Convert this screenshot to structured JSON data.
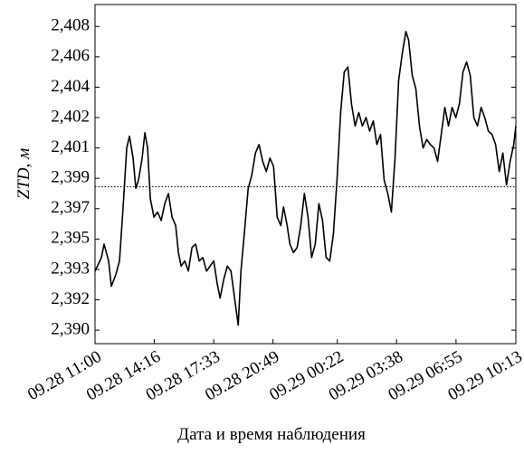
{
  "chart_data": {
    "type": "line",
    "x_label": "Дата и время наблюдения",
    "y_label": "ZTD, м",
    "xlim": [
      "09.28 11:00",
      "09.29 10:13"
    ],
    "xticks": [
      "09.28 11:00",
      "09.28 14:16",
      "09.28 17:33",
      "09.28 20:49",
      "09.29 00:22",
      "09.29 03:38",
      "09.29 06:55",
      "09.29 10:13"
    ],
    "ylim": [
      2.389,
      2.4091
    ],
    "yticks": [
      {
        "value": 2.3898,
        "label": "2,390"
      },
      {
        "value": 2.3916,
        "label": "2,392"
      },
      {
        "value": 2.3934,
        "label": "2,393"
      },
      {
        "value": 2.3952,
        "label": "2,395"
      },
      {
        "value": 2.397,
        "label": "2,397"
      },
      {
        "value": 2.3988,
        "label": "2,399"
      },
      {
        "value": 2.4006,
        "label": "2,401"
      },
      {
        "value": 2.4024,
        "label": "2,402"
      },
      {
        "value": 2.4042,
        "label": "2,404"
      },
      {
        "value": 2.406,
        "label": "2,406"
      },
      {
        "value": 2.4078,
        "label": "2,408"
      }
    ],
    "reference_line": 2.3983,
    "color": "#000000",
    "x": [
      "09.28 11:00",
      "09.28 11:21",
      "09.28 11:30",
      "09.28 11:45",
      "09.28 11:54",
      "09.28 12:09",
      "09.28 12:21",
      "09.28 12:33",
      "09.28 12:45",
      "09.28 12:54",
      "09.28 13:06",
      "09.28 13:15",
      "09.28 13:24",
      "09.28 13:36",
      "09.28 13:45",
      "09.28 13:54",
      "09.28 14:03",
      "09.28 14:15",
      "09.28 14:27",
      "09.28 14:39",
      "09.28 14:51",
      "09.28 15:03",
      "09.28 15:15",
      "09.28 15:27",
      "09.28 15:36",
      "09.28 15:45",
      "09.28 15:57",
      "09.28 16:09",
      "09.28 16:21",
      "09.28 16:33",
      "09.28 16:45",
      "09.28 16:57",
      "09.28 17:09",
      "09.28 17:21",
      "09.28 17:33",
      "09.28 17:45",
      "09.28 17:54",
      "09.28 18:06",
      "09.28 18:18",
      "09.28 18:30",
      "09.28 18:42",
      "09.28 18:54",
      "09.28 19:03",
      "09.28 19:15",
      "09.28 19:27",
      "09.28 19:39",
      "09.28 19:51",
      "09.28 20:03",
      "09.28 20:15",
      "09.28 20:27",
      "09.28 20:39",
      "09.28 20:51",
      "09.28 21:03",
      "09.28 21:15",
      "09.28 21:24",
      "09.28 21:36",
      "09.28 21:45",
      "09.28 21:57",
      "09.28 22:09",
      "09.28 22:21",
      "09.28 22:33",
      "09.28 22:45",
      "09.28 22:57",
      "09.28 23:09",
      "09.28 23:21",
      "09.28 23:33",
      "09.28 23:45",
      "09.28 23:57",
      "09.29 00:09",
      "09.29 00:21",
      "09.29 00:33",
      "09.29 00:45",
      "09.29 00:57",
      "09.29 01:09",
      "09.29 01:21",
      "09.29 01:33",
      "09.29 01:45",
      "09.29 01:57",
      "09.29 02:09",
      "09.29 02:21",
      "09.29 02:33",
      "09.29 02:45",
      "09.29 02:57",
      "09.29 03:09",
      "09.29 03:21",
      "09.29 03:33",
      "09.29 03:45",
      "09.29 03:57",
      "09.29 04:09",
      "09.29 04:18",
      "09.29 04:30",
      "09.29 04:42",
      "09.29 04:54",
      "09.29 05:06",
      "09.29 05:18",
      "09.29 05:30",
      "09.29 05:42",
      "09.29 05:54",
      "09.29 06:06",
      "09.29 06:18",
      "09.29 06:30",
      "09.29 06:42",
      "09.29 06:54",
      "09.29 07:06",
      "09.29 07:18",
      "09.29 07:30",
      "09.29 07:42",
      "09.29 07:54",
      "09.29 08:06",
      "09.29 08:18",
      "09.29 08:30",
      "09.29 08:42",
      "09.29 08:54",
      "09.29 09:06",
      "09.29 09:18",
      "09.29 09:30",
      "09.29 09:42",
      "09.29 09:54",
      "09.29 10:06",
      "09.29 10:13"
    ],
    "values": [
      2.3933,
      2.3941,
      2.3949,
      2.3939,
      2.3924,
      2.3931,
      2.3939,
      2.3971,
      2.4006,
      2.4013,
      2.4,
      2.3982,
      2.3987,
      2.4,
      2.4015,
      2.4006,
      2.3976,
      2.3965,
      2.3968,
      2.3963,
      2.3973,
      2.3979,
      2.3965,
      2.396,
      2.3944,
      2.3936,
      2.3939,
      2.3933,
      2.3947,
      2.3949,
      2.3939,
      2.3941,
      2.3933,
      2.3936,
      2.3939,
      2.3925,
      2.3917,
      2.3928,
      2.3936,
      2.3933,
      2.3917,
      2.3901,
      2.3933,
      2.3957,
      2.3982,
      2.399,
      2.4003,
      2.4008,
      2.3998,
      2.3992,
      2.4,
      2.3995,
      2.3965,
      2.396,
      2.3971,
      2.396,
      2.3949,
      2.3944,
      2.3947,
      2.396,
      2.3979,
      2.3965,
      2.3941,
      2.3949,
      2.3973,
      2.3963,
      2.3941,
      2.3939,
      2.3955,
      2.3987,
      2.4027,
      2.4051,
      2.4054,
      2.4032,
      2.4019,
      2.4027,
      2.4019,
      2.4024,
      2.4016,
      2.4022,
      2.4008,
      2.4014,
      2.3987,
      2.3979,
      2.3968,
      2.4,
      2.4046,
      2.4062,
      2.4075,
      2.407,
      2.4049,
      2.4041,
      2.4019,
      2.4006,
      2.4011,
      2.4008,
      2.4006,
      2.3998,
      2.4014,
      2.403,
      2.4019,
      2.403,
      2.4024,
      2.4032,
      2.4051,
      2.4057,
      2.4049,
      2.4024,
      2.4019,
      2.403,
      2.4024,
      2.4016,
      2.4014,
      2.4008,
      2.3992,
      2.4003,
      2.3984,
      2.3998,
      2.4008,
      2.4019
    ]
  }
}
